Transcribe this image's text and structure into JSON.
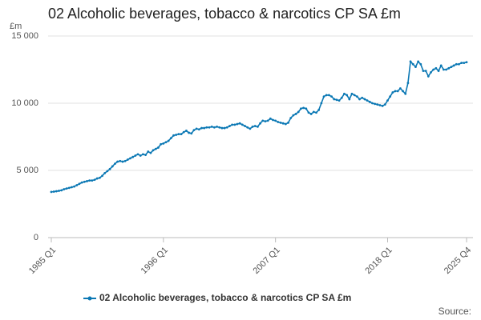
{
  "chart_data": {
    "type": "line",
    "title": "02 Alcoholic beverages, tobacco & narcotics CP SA £m",
    "y_unit": "£m",
    "source": "Source:",
    "categories": [
      "1985 Q1",
      null,
      null,
      null,
      null,
      null,
      null,
      null,
      null,
      null,
      null,
      null,
      null,
      null,
      null,
      null,
      null,
      null,
      null,
      null,
      null,
      null,
      null,
      null,
      null,
      null,
      null,
      null,
      null,
      null,
      null,
      null,
      null,
      null,
      null,
      null,
      null,
      null,
      null,
      null,
      null,
      null,
      null,
      null,
      "1996 Q1",
      null,
      null,
      null,
      null,
      null,
      null,
      null,
      null,
      null,
      null,
      null,
      null,
      null,
      null,
      null,
      null,
      null,
      null,
      null,
      null,
      null,
      null,
      null,
      null,
      null,
      null,
      null,
      null,
      null,
      null,
      null,
      null,
      null,
      null,
      null,
      null,
      null,
      null,
      null,
      null,
      null,
      null,
      null,
      "2007 Q1",
      null,
      null,
      null,
      null,
      null,
      null,
      null,
      null,
      null,
      null,
      null,
      null,
      null,
      null,
      null,
      null,
      null,
      null,
      null,
      null,
      null,
      null,
      null,
      null,
      null,
      null,
      null,
      null,
      null,
      null,
      null,
      null,
      null,
      null,
      null,
      null,
      null,
      null,
      null,
      null,
      null,
      null,
      null,
      "2018 Q1",
      null,
      null,
      null,
      null,
      null,
      null,
      null,
      null,
      null,
      null,
      null,
      null,
      null,
      null,
      null,
      null,
      null,
      null,
      null,
      null,
      null,
      null,
      null,
      null,
      null,
      null,
      null,
      null,
      null,
      null,
      "2025 Q4"
    ],
    "series": [
      {
        "name": "02 Alcoholic beverages, tobacco & narcotics CP SA £m",
        "color": "#0b78b4",
        "values": [
          3400,
          3420,
          3450,
          3480,
          3520,
          3600,
          3650,
          3700,
          3750,
          3800,
          3900,
          4000,
          4100,
          4150,
          4200,
          4250,
          4250,
          4300,
          4400,
          4450,
          4600,
          4800,
          4950,
          5100,
          5300,
          5500,
          5650,
          5700,
          5650,
          5700,
          5800,
          5900,
          6000,
          6100,
          6200,
          6100,
          6200,
          6150,
          6400,
          6300,
          6500,
          6600,
          6700,
          6950,
          7000,
          7100,
          7200,
          7400,
          7600,
          7650,
          7700,
          7700,
          7850,
          7950,
          7800,
          7750,
          8000,
          8100,
          8050,
          8150,
          8150,
          8200,
          8200,
          8250,
          8200,
          8250,
          8200,
          8150,
          8150,
          8200,
          8300,
          8400,
          8400,
          8450,
          8500,
          8400,
          8300,
          8200,
          8100,
          8250,
          8300,
          8250,
          8500,
          8700,
          8650,
          8700,
          8850,
          8750,
          8700,
          8600,
          8550,
          8500,
          8450,
          8550,
          8900,
          9100,
          9200,
          9350,
          9600,
          9650,
          9600,
          9300,
          9200,
          9350,
          9300,
          9500,
          10000,
          10500,
          10600,
          10600,
          10500,
          10300,
          10250,
          10200,
          10400,
          10700,
          10600,
          10300,
          10700,
          10600,
          10500,
          10300,
          10400,
          10300,
          10200,
          10100,
          10000,
          9950,
          9900,
          9850,
          9800,
          9900,
          10200,
          10500,
          10800,
          10900,
          10900,
          11100,
          10900,
          10700,
          11500,
          13100,
          12900,
          12700,
          13100,
          12900,
          12400,
          12400,
          12000,
          12300,
          12500,
          12600,
          12400,
          12800,
          12500,
          12500,
          12600,
          12700,
          12800,
          12900,
          12900,
          13000,
          13000,
          13050
        ]
      }
    ],
    "ylim": [
      0,
      15000
    ],
    "yticks": [
      0,
      {
        "value": 5000,
        "label": "5 000"
      },
      {
        "value": 10000,
        "label": "10 000"
      },
      {
        "value": 15000,
        "label": "15 000"
      }
    ],
    "grid": true
  }
}
